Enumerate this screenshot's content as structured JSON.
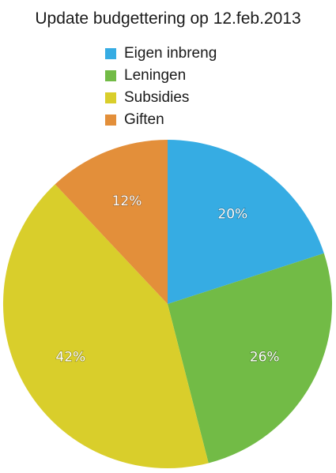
{
  "chart_data": {
    "type": "pie",
    "title": "Update budgettering op 12.feb.2013",
    "legend_position": "top",
    "series": [
      {
        "name": "Eigen inbreng",
        "value": 20,
        "label": "20%",
        "color": "#36ACE3"
      },
      {
        "name": "Leningen",
        "value": 26,
        "label": "26%",
        "color": "#72BB46"
      },
      {
        "name": "Subsidies",
        "value": 42,
        "label": "42%",
        "color": "#D9CE2B"
      },
      {
        "name": "Giften",
        "value": 12,
        "label": "12%",
        "color": "#E38F3A"
      }
    ]
  }
}
